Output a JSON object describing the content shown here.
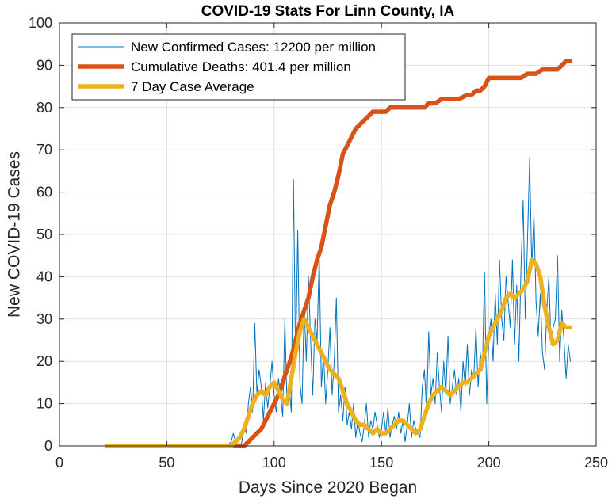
{
  "chart_data": {
    "type": "line",
    "title": "COVID-19 Stats For Linn County, IA",
    "xlabel": "Days Since 2020 Began",
    "ylabel": "New COVID-19 Cases",
    "xlim": [
      0,
      250
    ],
    "ylim": [
      0,
      100
    ],
    "xticks": [
      0,
      50,
      100,
      150,
      200,
      250
    ],
    "yticks": [
      0,
      10,
      20,
      30,
      40,
      50,
      60,
      70,
      80,
      90,
      100
    ],
    "grid": true,
    "legend_position": "top-left",
    "series": [
      {
        "name": "New Confirmed Cases: 12200 per million",
        "color": "#0072BD",
        "line_width": "thin",
        "x": [
          22,
          40,
          60,
          78,
          80,
          81,
          82,
          83,
          84,
          85,
          86,
          87,
          88,
          89,
          90,
          91,
          92,
          93,
          94,
          95,
          96,
          97,
          98,
          99,
          100,
          101,
          102,
          103,
          104,
          105,
          106,
          107,
          108,
          109,
          110,
          111,
          112,
          113,
          114,
          115,
          116,
          117,
          118,
          119,
          120,
          121,
          122,
          123,
          124,
          125,
          126,
          127,
          128,
          129,
          130,
          131,
          132,
          133,
          134,
          135,
          136,
          137,
          138,
          139,
          140,
          141,
          142,
          143,
          144,
          145,
          146,
          147,
          148,
          149,
          150,
          151,
          152,
          153,
          154,
          155,
          156,
          157,
          158,
          159,
          160,
          161,
          162,
          163,
          164,
          165,
          166,
          167,
          168,
          169,
          170,
          171,
          172,
          173,
          174,
          175,
          176,
          177,
          178,
          179,
          180,
          181,
          182,
          183,
          184,
          185,
          186,
          187,
          188,
          189,
          190,
          191,
          192,
          193,
          194,
          195,
          196,
          197,
          198,
          199,
          200,
          201,
          202,
          203,
          204,
          205,
          206,
          207,
          208,
          209,
          210,
          211,
          212,
          213,
          214,
          215,
          216,
          217,
          218,
          219,
          220,
          221,
          222,
          223,
          224,
          225,
          226,
          227,
          228,
          229,
          230,
          231,
          232,
          233,
          234,
          235,
          236,
          237,
          238
        ],
        "y": [
          0,
          0,
          0,
          0,
          1,
          3,
          1,
          2,
          0,
          1,
          5,
          3,
          10,
          14,
          8,
          29,
          12,
          18,
          14,
          6,
          15,
          9,
          14,
          20,
          12,
          8,
          16,
          12,
          7,
          30,
          10,
          14,
          8,
          63,
          20,
          51,
          15,
          10,
          33,
          20,
          40,
          25,
          12,
          30,
          25,
          45,
          14,
          22,
          10,
          18,
          28,
          12,
          20,
          35,
          8,
          12,
          6,
          14,
          5,
          8,
          4,
          10,
          2,
          6,
          3,
          1,
          5,
          10,
          2,
          6,
          4,
          8,
          5,
          2,
          4,
          8,
          3,
          9,
          2,
          5,
          7,
          4,
          8,
          3,
          6,
          1,
          5,
          10,
          2,
          6,
          4,
          3,
          2,
          14,
          18,
          8,
          27,
          12,
          16,
          10,
          22,
          14,
          8,
          20,
          12,
          26,
          10,
          14,
          18,
          12,
          16,
          8,
          20,
          14,
          24,
          12,
          18,
          16,
          28,
          14,
          22,
          18,
          41,
          10,
          26,
          30,
          20,
          36,
          24,
          44,
          30,
          25,
          40,
          34,
          28,
          44,
          24,
          38,
          20,
          42,
          58,
          30,
          48,
          68,
          42,
          55,
          34,
          26,
          36,
          22,
          18,
          32,
          40,
          24,
          28,
          30,
          45,
          20,
          32,
          25,
          16,
          24,
          20
        ]
      },
      {
        "name": "Cumulative Deaths: 401.4 per million",
        "color": "#D95319",
        "line_width": "thick",
        "x": [
          22,
          60,
          86,
          88,
          90,
          92,
          94,
          96,
          98,
          100,
          102,
          104,
          106,
          108,
          110,
          112,
          114,
          116,
          118,
          120,
          122,
          124,
          126,
          128,
          130,
          132,
          134,
          136,
          138,
          140,
          142,
          144,
          146,
          148,
          150,
          152,
          154,
          156,
          158,
          160,
          165,
          170,
          172,
          175,
          178,
          182,
          186,
          190,
          192,
          194,
          196,
          198,
          200,
          205,
          210,
          215,
          218,
          220,
          222,
          225,
          228,
          232,
          234,
          236,
          238
        ],
        "y": [
          0,
          0,
          0,
          1,
          2,
          3,
          4,
          6,
          8,
          10,
          12,
          15,
          18,
          21,
          25,
          29,
          32,
          35,
          40,
          44,
          47,
          52,
          57,
          60,
          64,
          69,
          71,
          73,
          75,
          76,
          77,
          78,
          79,
          79,
          79,
          79,
          80,
          80,
          80,
          80,
          80,
          80,
          81,
          81,
          82,
          82,
          82,
          83,
          83,
          84,
          84,
          85,
          87,
          87,
          87,
          87,
          88,
          88,
          88,
          89,
          89,
          89,
          90,
          91,
          91
        ]
      },
      {
        "name": "7 Day Case Average",
        "color": "#EDB120",
        "line_width": "thick",
        "x": [
          22,
          40,
          60,
          80,
          82,
          84,
          86,
          88,
          90,
          92,
          94,
          96,
          98,
          100,
          102,
          104,
          106,
          108,
          110,
          112,
          114,
          116,
          118,
          120,
          122,
          124,
          126,
          128,
          130,
          132,
          134,
          136,
          138,
          140,
          142,
          144,
          146,
          148,
          150,
          152,
          154,
          156,
          158,
          160,
          162,
          164,
          166,
          168,
          170,
          172,
          174,
          176,
          178,
          180,
          182,
          184,
          186,
          188,
          190,
          192,
          194,
          196,
          198,
          200,
          202,
          204,
          206,
          208,
          210,
          212,
          214,
          216,
          218,
          220,
          222,
          224,
          226,
          228,
          230,
          232,
          234,
          236,
          238
        ],
        "y": [
          0,
          0,
          0,
          0,
          1,
          2,
          4,
          7,
          10,
          12,
          13,
          12,
          14,
          15,
          13,
          11,
          10,
          16,
          22,
          27,
          30,
          28,
          26,
          24,
          22,
          20,
          18,
          17,
          16,
          13,
          10,
          8,
          6,
          5,
          5,
          4,
          3,
          4,
          3,
          3,
          4,
          5,
          6,
          6,
          5,
          4,
          3,
          4,
          7,
          10,
          12,
          13,
          14,
          13,
          12,
          13,
          14,
          15,
          15,
          16,
          17,
          18,
          22,
          26,
          28,
          30,
          32,
          35,
          36,
          35,
          36,
          37,
          39,
          44,
          43,
          40,
          33,
          28,
          24,
          25,
          29,
          28,
          28
        ]
      }
    ]
  }
}
